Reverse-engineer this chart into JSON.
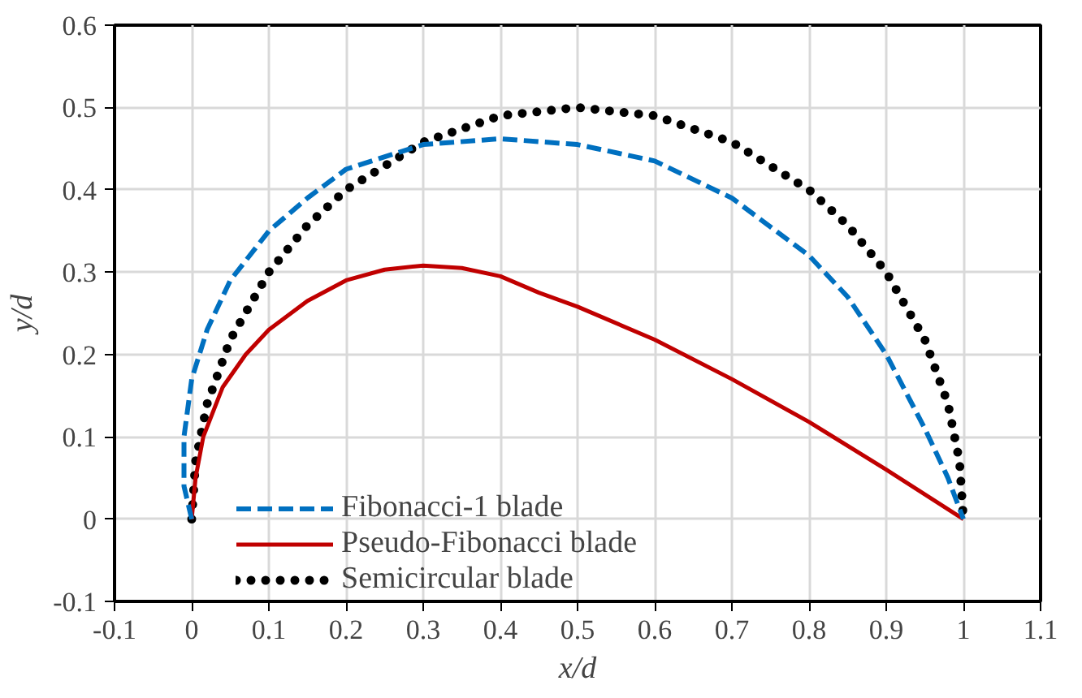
{
  "chart_data": {
    "type": "line",
    "xlabel": "x/d",
    "ylabel": "y/d",
    "xlim": [
      -0.1,
      1.1
    ],
    "ylim": [
      -0.1,
      0.6
    ],
    "xticks": [
      -0.1,
      0,
      0.1,
      0.2,
      0.3,
      0.4,
      0.5,
      0.6,
      0.7,
      0.8,
      0.9,
      1,
      1.1
    ],
    "yticks": [
      -0.1,
      0,
      0.1,
      0.2,
      0.3,
      0.4,
      0.5,
      0.6
    ],
    "grid": true,
    "legend": "bottom left",
    "series": [
      {
        "name": "Fibonacci-1 blade",
        "color": "#0070c0",
        "line_style": "dashed",
        "x": [
          0,
          -0.01,
          -0.01,
          0,
          0.02,
          0.05,
          0.1,
          0.15,
          0.2,
          0.3,
          0.4,
          0.5,
          0.6,
          0.7,
          0.8,
          0.85,
          0.9,
          0.95,
          0.98,
          1
        ],
        "values": [
          0,
          0.04,
          0.1,
          0.17,
          0.23,
          0.29,
          0.35,
          0.39,
          0.425,
          0.455,
          0.462,
          0.455,
          0.435,
          0.39,
          0.32,
          0.27,
          0.2,
          0.11,
          0.05,
          0
        ]
      },
      {
        "name": "Pseudo-Fibonacci blade",
        "color": "#c00000",
        "line_style": "solid",
        "x": [
          0,
          0.005,
          0.015,
          0.04,
          0.07,
          0.1,
          0.15,
          0.2,
          0.25,
          0.3,
          0.35,
          0.4,
          0.45,
          0.5,
          0.6,
          0.7,
          0.8,
          0.9,
          1
        ],
        "values": [
          0,
          0.05,
          0.1,
          0.16,
          0.2,
          0.23,
          0.265,
          0.29,
          0.303,
          0.308,
          0.305,
          0.295,
          0.275,
          0.258,
          0.218,
          0.17,
          0.118,
          0.06,
          0
        ]
      },
      {
        "name": "Semicircular blade",
        "color": "#000000",
        "line_style": "dotted",
        "x": [
          0,
          0.005,
          0.02,
          0.05,
          0.1,
          0.15,
          0.2,
          0.3,
          0.4,
          0.5,
          0.6,
          0.7,
          0.8,
          0.85,
          0.9,
          0.95,
          0.98,
          0.995,
          1
        ],
        "values": [
          0,
          0.07,
          0.14,
          0.218,
          0.3,
          0.357,
          0.4,
          0.458,
          0.49,
          0.5,
          0.49,
          0.458,
          0.4,
          0.357,
          0.3,
          0.218,
          0.14,
          0.07,
          0
        ]
      }
    ]
  }
}
